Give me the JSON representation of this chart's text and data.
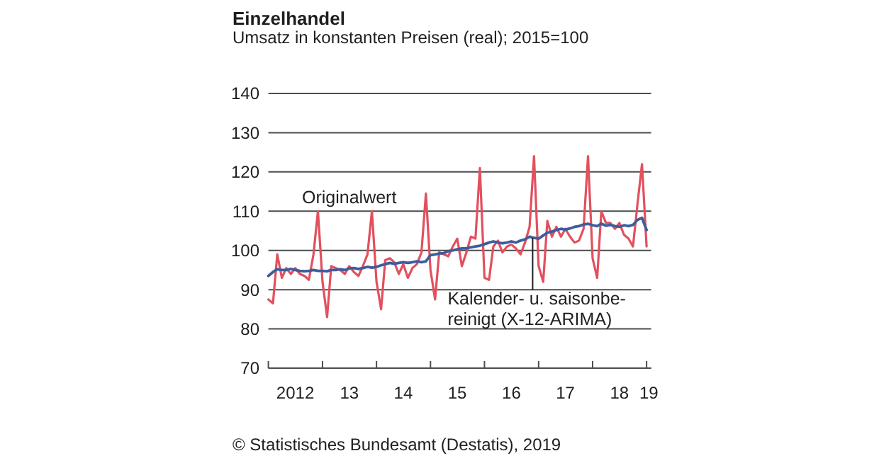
{
  "chart_data": {
    "type": "line",
    "title": "Einzelhandel",
    "subtitle": "Umsatz in konstanten Preisen (real); 2015=100",
    "annotations": [
      "© Statistisches Bundesamt (Destatis), 2019"
    ],
    "x": [
      "2012-01",
      "2012-02",
      "2012-03",
      "2012-04",
      "2012-05",
      "2012-06",
      "2012-07",
      "2012-08",
      "2012-09",
      "2012-10",
      "2012-11",
      "2012-12",
      "2013-01",
      "2013-02",
      "2013-03",
      "2013-04",
      "2013-05",
      "2013-06",
      "2013-07",
      "2013-08",
      "2013-09",
      "2013-10",
      "2013-11",
      "2013-12",
      "2014-01",
      "2014-02",
      "2014-03",
      "2014-04",
      "2014-05",
      "2014-06",
      "2014-07",
      "2014-08",
      "2014-09",
      "2014-10",
      "2014-11",
      "2014-12",
      "2015-01",
      "2015-02",
      "2015-03",
      "2015-04",
      "2015-05",
      "2015-06",
      "2015-07",
      "2015-08",
      "2015-09",
      "2015-10",
      "2015-11",
      "2015-12",
      "2016-01",
      "2016-02",
      "2016-03",
      "2016-04",
      "2016-05",
      "2016-06",
      "2016-07",
      "2016-08",
      "2016-09",
      "2016-10",
      "2016-11",
      "2016-12",
      "2017-01",
      "2017-02",
      "2017-03",
      "2017-04",
      "2017-05",
      "2017-06",
      "2017-07",
      "2017-08",
      "2017-09",
      "2017-10",
      "2017-11",
      "2017-12",
      "2018-01",
      "2018-02",
      "2018-03",
      "2018-04",
      "2018-05",
      "2018-06",
      "2018-07",
      "2018-08",
      "2018-09",
      "2018-10",
      "2018-11",
      "2018-12",
      "2019-01"
    ],
    "series": [
      {
        "name": "Originalwert",
        "color": "#e2505e",
        "values": [
          87.5,
          86.5,
          99,
          93,
          95.5,
          94,
          95.5,
          94,
          93.5,
          92.5,
          99,
          110,
          92,
          83,
          96,
          95.5,
          95,
          94,
          96,
          94.5,
          93.5,
          96,
          99,
          110,
          92,
          85,
          97.5,
          98,
          97,
          94,
          96.5,
          93,
          95.5,
          96.5,
          99.5,
          114.5,
          95,
          87.5,
          99.5,
          99,
          98.5,
          101,
          103,
          96,
          99.5,
          103.5,
          103,
          121,
          93,
          92.5,
          101,
          102.5,
          99.5,
          101,
          101.5,
          100.5,
          99,
          102,
          106,
          124,
          96,
          92,
          107.5,
          103.5,
          106,
          103.5,
          105.5,
          103.5,
          102,
          102.5,
          105.5,
          124,
          98,
          93,
          110,
          107,
          107,
          105.5,
          107,
          104,
          103,
          101,
          112,
          122,
          101
        ]
      },
      {
        "name": "Kalender- u. saisonbe-\nreinigt (X-12-ARIMA)",
        "color": "#3e5d9c",
        "values": [
          93.5,
          94.5,
          95.2,
          95,
          95,
          95.3,
          95,
          94.8,
          94.7,
          94.8,
          95,
          94.8,
          94.8,
          94.7,
          95,
          95,
          95.2,
          95,
          95.4,
          95.5,
          95.3,
          95.5,
          95.8,
          95.6,
          95.8,
          96.2,
          96.5,
          96.8,
          96.6,
          96.8,
          97,
          96.8,
          97,
          97.2,
          97,
          97.2,
          98.8,
          99,
          99.2,
          99.3,
          99.8,
          100,
          100.3,
          100.5,
          100.5,
          100.8,
          101,
          101.2,
          101.6,
          102,
          102.3,
          102,
          101.8,
          102,
          102.3,
          102,
          102.5,
          102.8,
          103.5,
          103.2,
          103,
          103.8,
          104.5,
          104.8,
          105.2,
          105.5,
          105.3,
          105.6,
          106,
          106.2,
          106.6,
          106.8,
          106.4,
          106.2,
          106.8,
          106.3,
          106.5,
          106.2,
          106,
          106.4,
          106.2,
          106.5,
          107.8,
          108.3,
          105.2
        ]
      }
    ],
    "xlim": [
      "2012-01",
      "2019-02"
    ],
    "xticks": [
      {
        "value": "2012-01",
        "label": null
      },
      {
        "value": "2012-07",
        "label": "2012"
      },
      {
        "value": "2013-01",
        "label": null
      },
      {
        "value": "2013-07",
        "label": "13"
      },
      {
        "value": "2014-01",
        "label": null
      },
      {
        "value": "2014-07",
        "label": "14"
      },
      {
        "value": "2015-01",
        "label": null
      },
      {
        "value": "2015-07",
        "label": "15"
      },
      {
        "value": "2016-01",
        "label": null
      },
      {
        "value": "2016-07",
        "label": "16"
      },
      {
        "value": "2017-01",
        "label": null
      },
      {
        "value": "2017-07",
        "label": "17"
      },
      {
        "value": "2018-01",
        "label": null
      },
      {
        "value": "2018-07",
        "label": "18"
      },
      {
        "value": "2019-01",
        "label": null
      },
      {
        "value": "2019-01-16",
        "label": "19"
      }
    ],
    "ylim": [
      70,
      140
    ],
    "yticks": [
      70,
      80,
      90,
      100,
      110,
      120,
      130,
      140
    ],
    "grid": "y",
    "marker": "none",
    "line_style": "solid"
  }
}
